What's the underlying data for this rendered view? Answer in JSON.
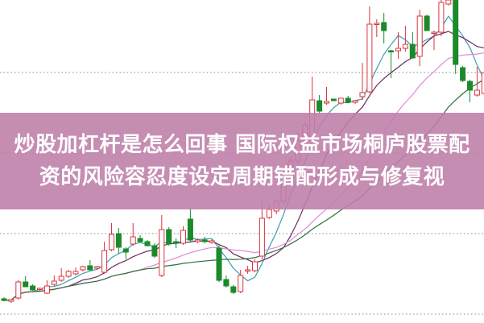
{
  "title": {
    "line1": "炒股加杠杆是怎么回事 国际权益市场桐庐股票配",
    "line2": "资的风险容忍度设定周期错配形成与修复视"
  },
  "chart_data": {
    "type": "candlestick",
    "title": "",
    "xlabel": "",
    "ylabel": "",
    "grid": "horizontal-dotted",
    "colors": {
      "up": "#d9363e",
      "down": "#1a8a2a",
      "ma5": "#3a9fb0",
      "ma10": "#6b2a5e",
      "ma20": "#e08ad8",
      "ma30": "#2f6f3a",
      "band": "#c48ab0"
    },
    "moving_averages": [
      5,
      10,
      20,
      30
    ],
    "candles": [
      {
        "o": 29,
        "h": 31,
        "l": 26,
        "c": 27
      },
      {
        "o": 26,
        "h": 28,
        "l": 24,
        "c": 28
      },
      {
        "o": 30,
        "h": 52,
        "l": 28,
        "c": 50
      },
      {
        "o": 50,
        "h": 57,
        "l": 44,
        "c": 44
      },
      {
        "o": 45,
        "h": 47,
        "l": 39,
        "c": 40
      },
      {
        "o": 41,
        "h": 43,
        "l": 39,
        "c": 42
      },
      {
        "o": 36,
        "h": 52,
        "l": 35,
        "c": 45
      },
      {
        "o": 47,
        "h": 58,
        "l": 45,
        "c": 51
      },
      {
        "o": 52,
        "h": 67,
        "l": 50,
        "c": 57
      },
      {
        "o": 57,
        "h": 65,
        "l": 55,
        "c": 63
      },
      {
        "o": 60,
        "h": 68,
        "l": 58,
        "c": 63
      },
      {
        "o": 65,
        "h": 70,
        "l": 63,
        "c": 69
      },
      {
        "o": 70,
        "h": 77,
        "l": 64,
        "c": 65
      },
      {
        "o": 67,
        "h": 70,
        "l": 65,
        "c": 69
      },
      {
        "o": 62,
        "h": 100,
        "l": 60,
        "c": 89
      },
      {
        "o": 90,
        "h": 123,
        "l": 88,
        "c": 109
      },
      {
        "o": 110,
        "h": 117,
        "l": 85,
        "c": 93
      },
      {
        "o": 91,
        "h": 93,
        "l": 78,
        "c": 87
      },
      {
        "o": 97,
        "h": 123,
        "l": 95,
        "c": 106
      },
      {
        "o": 104,
        "h": 108,
        "l": 100,
        "c": 100
      },
      {
        "o": 100,
        "h": 102,
        "l": 94,
        "c": 95
      },
      {
        "o": 95,
        "h": 98,
        "l": 80,
        "c": 82
      },
      {
        "o": 58,
        "h": 133,
        "l": 56,
        "c": 115
      },
      {
        "o": 115,
        "h": 118,
        "l": 95,
        "c": 97
      },
      {
        "o": 100,
        "h": 104,
        "l": 92,
        "c": 98
      },
      {
        "o": 98,
        "h": 119,
        "l": 96,
        "c": 114
      },
      {
        "o": 128,
        "h": 142,
        "l": 100,
        "c": 102
      },
      {
        "o": 100,
        "h": 104,
        "l": 98,
        "c": 102
      },
      {
        "o": 102,
        "h": 106,
        "l": 98,
        "c": 100
      },
      {
        "o": 99,
        "h": 103,
        "l": 97,
        "c": 101
      },
      {
        "o": 92,
        "h": 96,
        "l": 50,
        "c": 52
      },
      {
        "o": 53,
        "h": 58,
        "l": 43,
        "c": 45
      },
      {
        "o": 44,
        "h": 46,
        "l": 35,
        "c": 37
      },
      {
        "o": 38,
        "h": 65,
        "l": 36,
        "c": 58
      },
      {
        "o": 64,
        "h": 70,
        "l": 60,
        "c": 65
      },
      {
        "o": 64,
        "h": 78,
        "l": 62,
        "c": 75
      },
      {
        "o": 82,
        "h": 150,
        "l": 78,
        "c": 129
      },
      {
        "o": 130,
        "h": 145,
        "l": 128,
        "c": 140
      },
      {
        "o": 138,
        "h": 152,
        "l": 134,
        "c": 150
      },
      {
        "o": 150,
        "h": 180,
        "l": 146,
        "c": 175
      },
      {
        "o": 175,
        "h": 205,
        "l": 170,
        "c": 200
      },
      {
        "o": 200,
        "h": 235,
        "l": 195,
        "c": 226
      },
      {
        "o": 225,
        "h": 250,
        "l": 220,
        "c": 245
      },
      {
        "o": 225,
        "h": 305,
        "l": 220,
        "c": 276
      },
      {
        "o": 275,
        "h": 282,
        "l": 260,
        "c": 262
      },
      {
        "o": 272,
        "h": 292,
        "l": 270,
        "c": 274
      },
      {
        "o": 277,
        "h": 277,
        "l": 275,
        "c": 275
      },
      {
        "o": 272,
        "h": 278,
        "l": 270,
        "c": 278
      },
      {
        "o": 278,
        "h": 281,
        "l": 272,
        "c": 273
      },
      {
        "o": 273,
        "h": 276,
        "l": 271,
        "c": 275
      },
      {
        "o": 280,
        "h": 322,
        "l": 276,
        "c": 285
      },
      {
        "o": 286,
        "h": 392,
        "l": 284,
        "c": 370
      },
      {
        "o": 370,
        "h": 376,
        "l": 354,
        "c": 371
      },
      {
        "o": 372,
        "h": 384,
        "l": 346,
        "c": 362
      },
      {
        "o": 337,
        "h": 338,
        "l": 303,
        "c": 336
      },
      {
        "o": 337,
        "h": 360,
        "l": 327,
        "c": 340
      },
      {
        "o": 340,
        "h": 368,
        "l": 336,
        "c": 345
      },
      {
        "o": 345,
        "h": 360,
        "l": 328,
        "c": 328
      },
      {
        "o": 330,
        "h": 388,
        "l": 318,
        "c": 380
      },
      {
        "o": 380,
        "h": 382,
        "l": 362,
        "c": 362
      },
      {
        "o": 360,
        "h": 362,
        "l": 338,
        "c": 360
      },
      {
        "o": 360,
        "h": 400,
        "l": 355,
        "c": 397
      },
      {
        "o": 395,
        "h": 402,
        "l": 393,
        "c": 400
      },
      {
        "o": 400,
        "h": 402,
        "l": 308,
        "c": 320
      },
      {
        "o": 316,
        "h": 318,
        "l": 298,
        "c": 300
      },
      {
        "o": 299,
        "h": 301,
        "l": 273,
        "c": 288
      },
      {
        "o": 282,
        "h": 317,
        "l": 280,
        "c": 288
      },
      {
        "o": 284,
        "h": 310,
        "l": 282,
        "c": 310
      },
      {
        "o": 312,
        "h": 315,
        "l": 296,
        "c": 298
      }
    ]
  }
}
